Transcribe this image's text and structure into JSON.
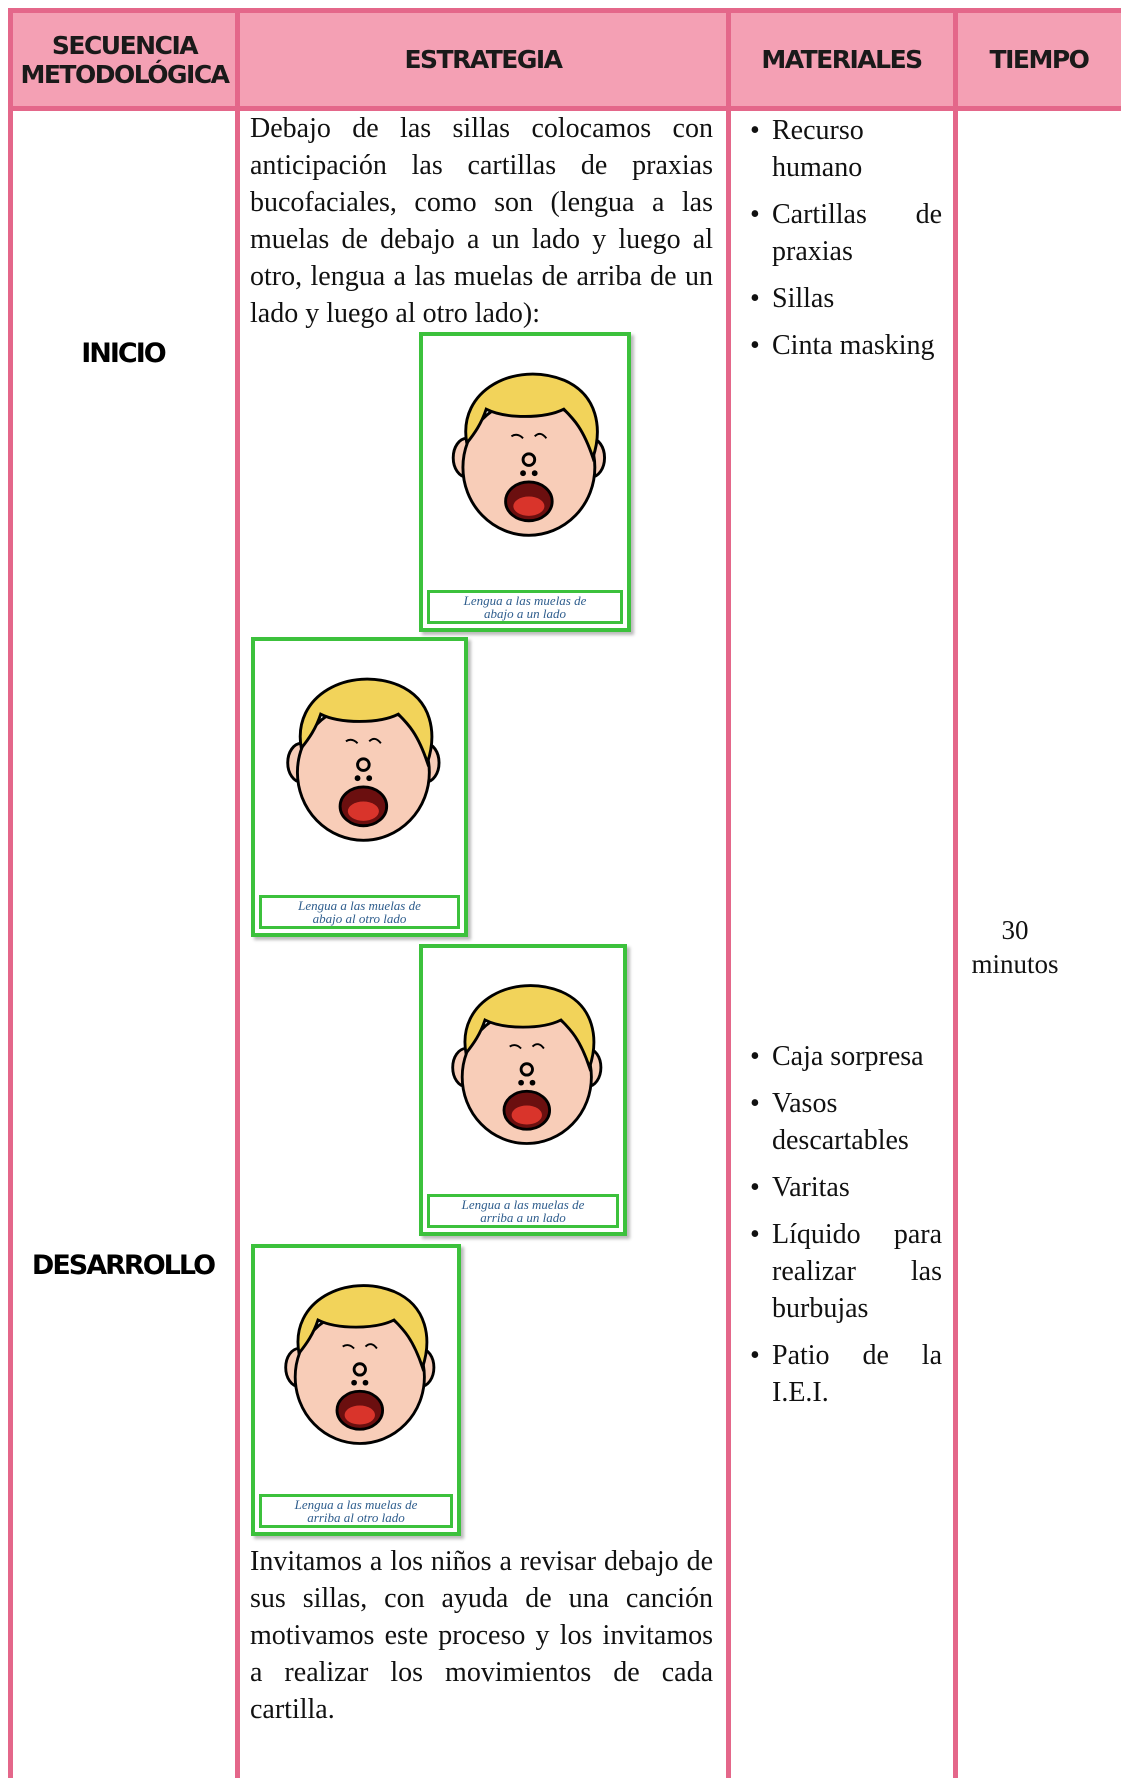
{
  "header": [
    "SECUENCIA METODOLÓGICA",
    "ESTRATEGIA",
    "MATERIALES",
    "TIEMPO"
  ],
  "rows": [
    {
      "sequence": "INICIO",
      "strategy_intro": "Debajo de las sillas colocamos con anticipación las cartillas de praxias bucofaciales, como son (lengua a las muelas de debajo a un lado y luego al otro, lengua a las muelas de arriba de un lado y luego al otro lado):",
      "materials": [
        "Recurso humano",
        "Cartillas de praxias",
        "Sillas",
        "Cinta masking"
      ]
    },
    {
      "sequence": "DESARROLLO",
      "strategy_text": "Invitamos a los niños a revisar debajo de sus sillas, con ayuda de una canción motivamos este proceso y los invitamos a realizar los movimientos de cada cartilla.",
      "materials": [
        "Caja sorpresa",
        "Vasos descartables",
        "Varitas",
        "Líquido para realizar las burbujas",
        "Patio de la I.E.I."
      ]
    }
  ],
  "cards": [
    "Lengua a las muelas de abajo a un lado",
    "Lengua a las muelas de abajo al otro lado",
    "Lengua a las muelas de arriba a un lado",
    "Lengua a las muelas de arriba al otro lado"
  ],
  "time": "30 minutos"
}
